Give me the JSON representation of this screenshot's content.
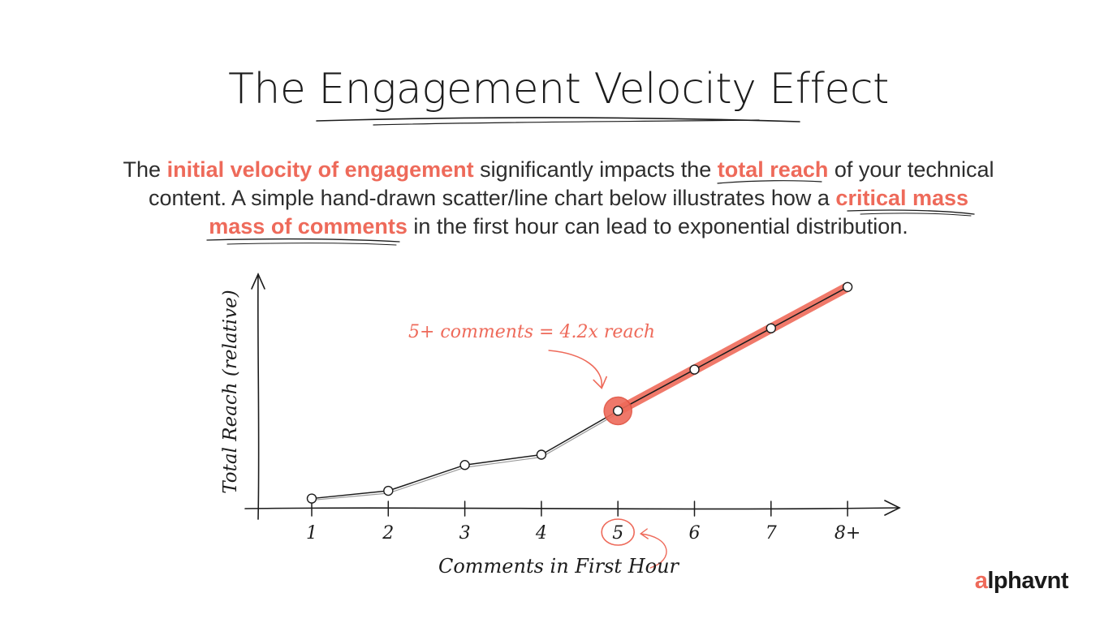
{
  "page": {
    "title": "The Engagement Velocity Effect",
    "intro": {
      "p1": "The ",
      "h1": "initial velocity of engagement",
      "p2": " significantly impacts the ",
      "h2": "total reach",
      "p3": " of your technical content. A simple hand-drawn scatter/line chart below illustrates how a ",
      "h3": "critical mass mass of comments",
      "p4": " in the first hour can lead to exponential distribution."
    },
    "brand": {
      "accent": "a",
      "rest": "lphavnt"
    }
  },
  "colors": {
    "accent": "#ee6a5a",
    "ink": "#1c1c1c"
  },
  "chart_data": {
    "type": "line",
    "xlabel": "Comments in First Hour",
    "ylabel": "Total Reach (relative)",
    "categories": [
      "1",
      "2",
      "3",
      "4",
      "5",
      "6",
      "7",
      "8+"
    ],
    "series": [
      {
        "values": [
          0.8,
          1.1,
          2.1,
          2.5,
          4.2,
          5.8,
          7.4,
          9.0
        ]
      }
    ],
    "ylim": [
      0,
      10
    ],
    "highlight": {
      "category": "5",
      "annotation": "5+ comments = 4.2x reach"
    },
    "grid": false
  }
}
